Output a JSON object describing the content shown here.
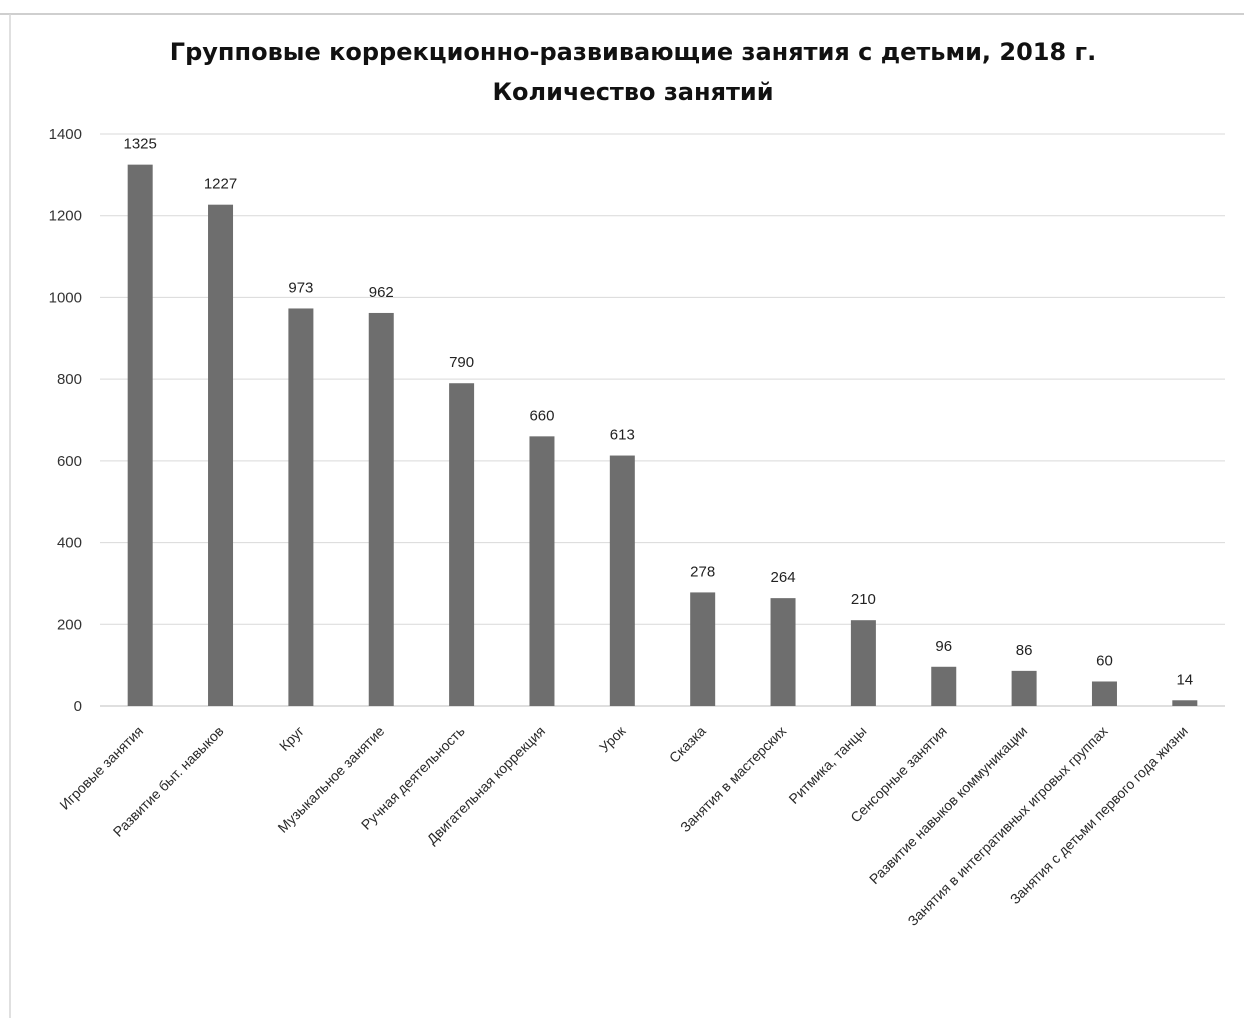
{
  "chart_data": {
    "type": "bar",
    "title": "Групповые коррекционно-развивающие занятия с детьми, 2018 г.",
    "subtitle": "Количество занятий",
    "categories": [
      "Игровые занятия",
      "Развитие быт. навыков",
      "Круг",
      "Музыкальное занятие",
      "Ручная деятельность",
      "Двигательная коррекция",
      "Урок",
      "Сказка",
      "Занятия в мастерских",
      "Ритмика, танцы",
      "Сенсорные занятия",
      "Развитие навыков коммуникации",
      "Занятия в интегративных игровых группах",
      "Занятия с детьми первого года жизни"
    ],
    "values": [
      1325,
      1227,
      973,
      962,
      790,
      660,
      613,
      278,
      264,
      210,
      96,
      86,
      60,
      14
    ],
    "data_labels": [
      "1325",
      "1227",
      "973",
      "962",
      "790",
      "660",
      "613",
      "278",
      "264",
      "210",
      "96",
      "86",
      "60",
      "14"
    ],
    "yticks": [
      "0",
      "200",
      "400",
      "600",
      "800",
      "1000",
      "1200",
      "1400"
    ],
    "ylim": [
      0,
      1400
    ],
    "grid": true,
    "legend": "none",
    "colors": {
      "bar": "#6e6e6e",
      "grid": "#d9d9d9",
      "axis": "#bfbfbf"
    }
  }
}
